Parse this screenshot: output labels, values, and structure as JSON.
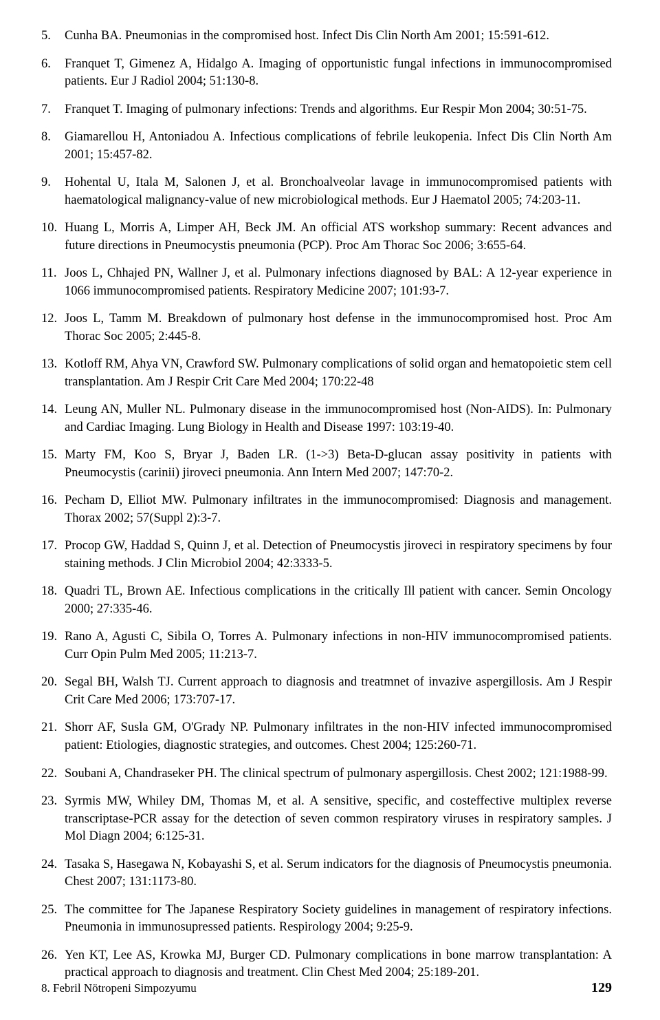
{
  "references": [
    {
      "num": "5.",
      "text": "Cunha BA. Pneumonias in the compromised host. Infect Dis Clin North Am 2001; 15:591-612."
    },
    {
      "num": "6.",
      "text": "Franquet T, Gimenez A, Hidalgo A. Imaging of opportunistic fungal infections in immunocompromised patients. Eur J Radiol 2004; 51:130-8."
    },
    {
      "num": "7.",
      "text": "Franquet T. Imaging of pulmonary infections: Trends and algorithms. Eur Respir Mon 2004; 30:51-75."
    },
    {
      "num": "8.",
      "text": "Giamarellou H, Antoniadou A. Infectious complications of febrile leukopenia. Infect Dis Clin North Am 2001; 15:457-82."
    },
    {
      "num": "9.",
      "text": "Hohental U, Itala M, Salonen J, et al. Bronchoalveolar lavage in immunocompromised patients with haematological malignancy-value of new microbiological methods. Eur J Haematol 2005; 74:203-11."
    },
    {
      "num": "10.",
      "text": "Huang L, Morris A, Limper AH, Beck JM. An official ATS workshop summary: Recent advances and future directions in Pneumocystis pneumonia (PCP). Proc Am Thorac Soc 2006; 3:655-64."
    },
    {
      "num": "11.",
      "text": "Joos L, Chhajed PN, Wallner J, et al. Pulmonary infections diagnosed by BAL: A 12-year experience in 1066 immunocompromised patients. Respiratory Medicine 2007; 101:93-7."
    },
    {
      "num": "12.",
      "text": "Joos L, Tamm M. Breakdown of pulmonary host defense in the immunocompromised host. Proc Am Thorac Soc 2005; 2:445-8."
    },
    {
      "num": "13.",
      "text": "Kotloff RM, Ahya VN, Crawford SW. Pulmonary complications of solid organ and hematopoietic stem cell transplantation. Am J Respir Crit Care Med 2004; 170:22-48"
    },
    {
      "num": "14.",
      "text": "Leung AN, Muller NL. Pulmonary disease in the immunocompromised host (Non-AIDS). In: Pulmonary and Cardiac Imaging. Lung Biology in Health and Disease 1997: 103:19-40."
    },
    {
      "num": "15.",
      "text": "Marty FM, Koo S, Bryar J, Baden LR. (1->3) Beta-D-glucan assay positivity in patients with Pneumocystis (carinii) jiroveci pneumonia. Ann Intern Med 2007; 147:70-2."
    },
    {
      "num": "16.",
      "text": "Pecham D, Elliot MW. Pulmonary infiltrates in the immunocompromised: Diagnosis and management. Thorax 2002; 57(Suppl 2):3-7."
    },
    {
      "num": "17.",
      "text": "Procop GW, Haddad S, Quinn J, et al. Detection of Pneumocystis jiroveci in respiratory specimens by four staining methods. J Clin Microbiol 2004; 42:3333-5."
    },
    {
      "num": "18.",
      "text": "Quadri TL, Brown AE. Infectious complications in the critically Ill patient with cancer. Semin Oncology 2000; 27:335-46."
    },
    {
      "num": "19.",
      "text": "Rano A, Agusti C, Sibila O, Torres A. Pulmonary infections in non-HIV immunocompromised patients. Curr Opin Pulm Med 2005; 11:213-7."
    },
    {
      "num": "20.",
      "text": "Segal BH, Walsh TJ. Current approach to diagnosis and treatmnet of invazive aspergillosis. Am J Respir Crit Care Med 2006; 173:707-17."
    },
    {
      "num": "21.",
      "text": "Shorr AF, Susla GM, O'Grady NP. Pulmonary infiltrates in the non-HIV infected immunocompromised patient: Etiologies, diagnostic strategies, and outcomes. Chest 2004; 125:260-71."
    },
    {
      "num": "22.",
      "text": "Soubani A, Chandraseker PH. The clinical spectrum of pulmonary aspergillosis. Chest 2002; 121:1988-99."
    },
    {
      "num": "23.",
      "text": "Syrmis MW, Whiley DM, Thomas M, et al. A sensitive, specific, and costeffective multiplex reverse transcriptase-PCR assay for the detection of seven common respiratory viruses in respiratory samples. J Mol Diagn 2004; 6:125-31."
    },
    {
      "num": "24.",
      "text": "Tasaka S, Hasegawa N, Kobayashi S, et al. Serum indicators for the diagnosis of Pneumocystis pneumonia. Chest 2007; 131:1173-80."
    },
    {
      "num": "25.",
      "text": "The committee for The Japanese Respiratory Society guidelines in management of respiratory infections. Pneumonia in immunosupressed patients. Respirology 2004; 9:25-9."
    },
    {
      "num": "26.",
      "text": "Yen KT, Lee AS, Krowka MJ, Burger CD. Pulmonary complications in bone marrow transplantation: A practical approach to diagnosis and treatment. Clin Chest Med 2004; 25:189-201."
    }
  ],
  "footer": {
    "title": "8. Febril Nötropeni Simpozyumu",
    "page": "129"
  },
  "style": {
    "font_family": "Times New Roman",
    "body_fontsize": 18.5,
    "body_lineheight": 1.38,
    "background_color": "#ffffff",
    "text_color": "#000000",
    "footer_fontsize": 17,
    "page_number_fontsize": 20
  }
}
